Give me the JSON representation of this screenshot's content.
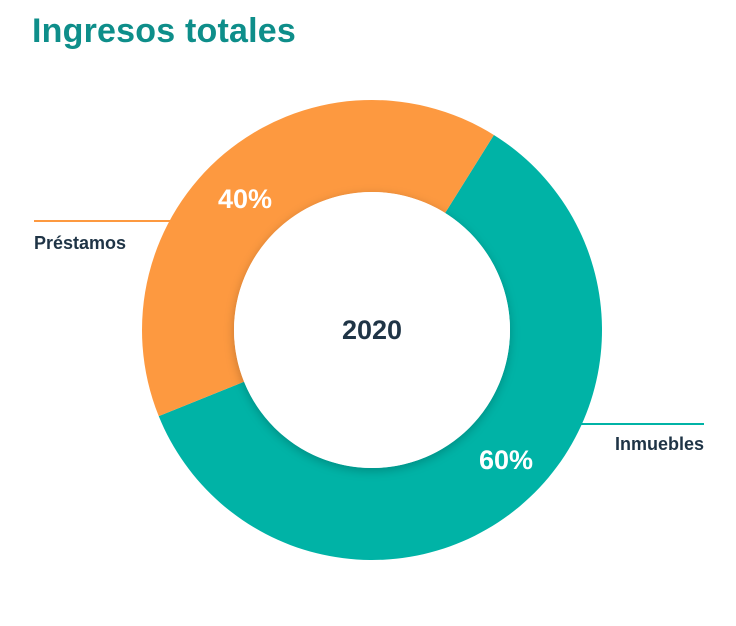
{
  "title": "Ingresos totales",
  "chart_data": {
    "type": "pie",
    "center_label": "2020",
    "categories": [
      "Inmuebles",
      "Préstamos"
    ],
    "values": [
      60,
      40
    ],
    "value_labels": [
      "60%",
      "40%"
    ],
    "colors": [
      "#00b3a6",
      "#fd9940"
    ],
    "legend": "leader lines with labels beside slices"
  }
}
